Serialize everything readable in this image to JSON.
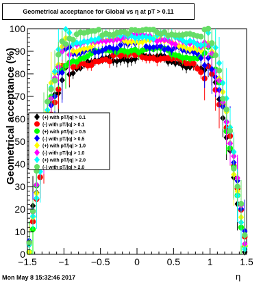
{
  "chart_data": {
    "type": "scatter",
    "title": "Geometrical acceptance for Global vs  η at pT > 0.11",
    "xlabel": "η",
    "ylabel": "Geometrical acceptance (%)",
    "xlim": [
      -1.5,
      1.5
    ],
    "ylim": [
      0,
      100
    ],
    "xticks": [
      "−1.5",
      "−1",
      "−0.5",
      "0",
      "0.5",
      "1",
      "1.5"
    ],
    "yticks": [
      "0",
      "10",
      "20",
      "30",
      "40",
      "50",
      "60",
      "70",
      "80",
      "90",
      "100"
    ],
    "grid": false,
    "legend_position": "left-middle",
    "timestamp": "Mon May  8 15:32:46 2017",
    "series": [
      {
        "name": "(+) with pT/|q| > 0.1",
        "color": "#000000",
        "marker": "diamond",
        "plateau": 87.5,
        "sag": 7
      },
      {
        "name": "(-) with pT/|q| > 0.1",
        "color": "#ff0000",
        "marker": "circle",
        "plateau": 88,
        "sag": 7
      },
      {
        "name": "(+) with pT/|q| > 0.5",
        "color": "#00ff00",
        "marker": "circle",
        "plateau": 91,
        "sag": 6
      },
      {
        "name": "(-) with pT/|q| > 0.5",
        "color": "#0000ff",
        "marker": "diamond",
        "plateau": 93,
        "sag": 6
      },
      {
        "name": "(+) with pT/|q| > 1.0",
        "color": "#ffff00",
        "marker": "diamond",
        "plateau": 95,
        "sag": 5
      },
      {
        "name": "(-) with pT/|q| > 1.0",
        "color": "#ff00ff",
        "marker": "diamond",
        "plateau": 96,
        "sag": 5
      },
      {
        "name": "(+) with pT/|q| > 2.0",
        "color": "#00ffff",
        "marker": "diamond",
        "plateau": 97,
        "sag": 4
      },
      {
        "name": "(-) with pT/|q| > 2.0",
        "color": "#66dd66",
        "marker": "circle",
        "plateau": 99,
        "sag": 3
      }
    ]
  }
}
